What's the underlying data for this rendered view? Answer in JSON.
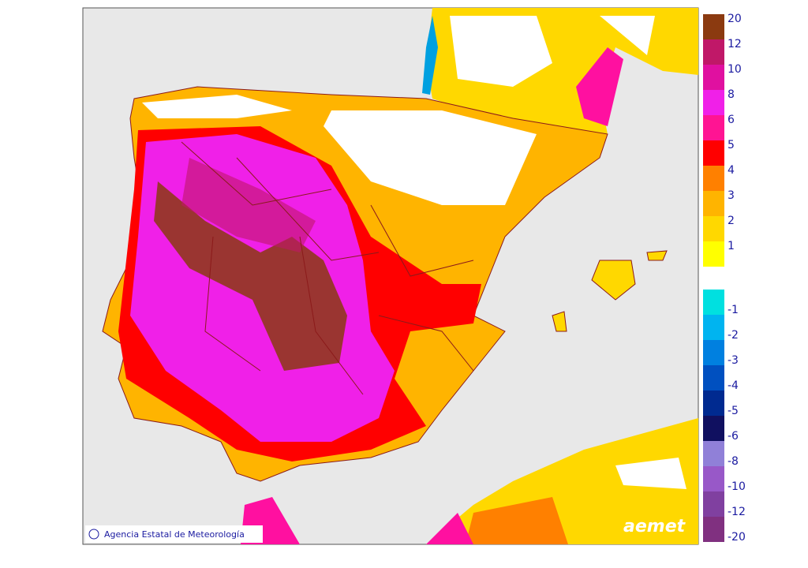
{
  "credit": "Agencia Estatal de Meteorología",
  "logo": "aemet",
  "legend": {
    "positive": [
      {
        "value": 20,
        "color": "#8b3a10"
      },
      {
        "value": 12,
        "color": "#c01868"
      },
      {
        "value": 10,
        "color": "#e010a0"
      },
      {
        "value": 8,
        "color": "#f020e8"
      },
      {
        "value": 6,
        "color": "#ff1493"
      },
      {
        "value": 5,
        "color": "#ff0000"
      },
      {
        "value": 4,
        "color": "#ff8000"
      },
      {
        "value": 3,
        "color": "#ffb400"
      },
      {
        "value": 2,
        "color": "#ffd800"
      },
      {
        "value": 1,
        "color": "#ffff00"
      }
    ],
    "negative": [
      {
        "value": -1,
        "color": "#00e0e0"
      },
      {
        "value": -2,
        "color": "#00b4f0"
      },
      {
        "value": -3,
        "color": "#0080e0"
      },
      {
        "value": -4,
        "color": "#0050c0"
      },
      {
        "value": -5,
        "color": "#002a90"
      },
      {
        "value": -6,
        "color": "#101060"
      },
      {
        "value": -8,
        "color": "#9080d8"
      },
      {
        "value": -10,
        "color": "#9858c8"
      },
      {
        "value": -12,
        "color": "#8040a0"
      },
      {
        "value": -20,
        "color": "#803080"
      }
    ]
  }
}
